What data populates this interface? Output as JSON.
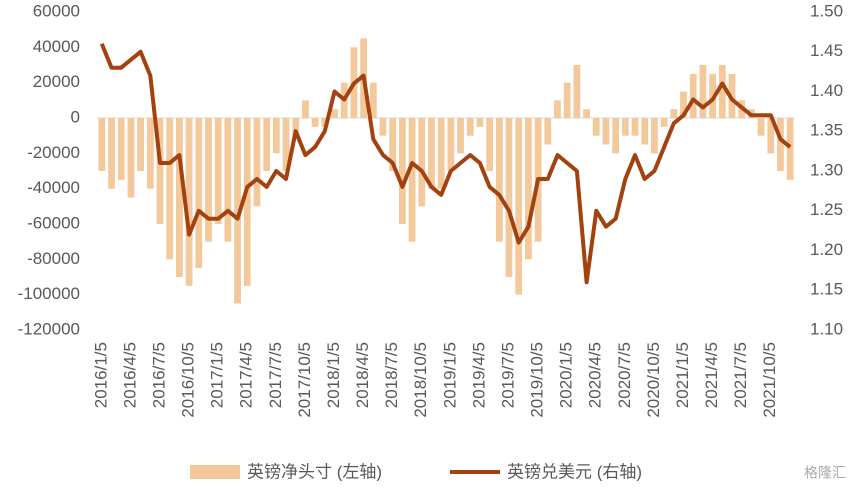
{
  "chart_data": {
    "type": "bar-line",
    "categories": [
      "2016/1/5",
      null,
      null,
      "2016/4/5",
      null,
      null,
      "2016/7/5",
      null,
      null,
      "2016/10/5",
      null,
      null,
      "2017/1/5",
      null,
      null,
      "2017/4/5",
      null,
      null,
      "2017/7/5",
      null,
      null,
      "2017/10/5",
      null,
      null,
      "2018/1/5",
      null,
      null,
      "2018/4/5",
      null,
      null,
      "2018/7/5",
      null,
      null,
      "2018/10/5",
      null,
      null,
      "2019/1/5",
      null,
      null,
      "2019/4/5",
      null,
      null,
      "2019/7/5",
      null,
      null,
      "2019/10/5",
      null,
      null,
      "2020/1/5",
      null,
      null,
      "2020/4/5",
      null,
      null,
      "2020/7/5",
      null,
      null,
      "2020/10/5",
      null,
      null,
      "2021/1/5",
      null,
      null,
      "2021/4/5",
      null,
      null,
      "2021/7/5",
      null,
      null,
      "2021/10/5",
      null,
      null
    ],
    "series": [
      {
        "name": "英镑净头寸 (左轴)",
        "color": "#f3c99b",
        "values": [
          -30000,
          -40000,
          -35000,
          -45000,
          -30000,
          -40000,
          -60000,
          -80000,
          -90000,
          -95000,
          -85000,
          -70000,
          -60000,
          -70000,
          -105000,
          -95000,
          -50000,
          -30000,
          -20000,
          -30000,
          -10000,
          10000,
          -5000,
          -5000,
          5000,
          20000,
          40000,
          45000,
          20000,
          -10000,
          -30000,
          -60000,
          -70000,
          -50000,
          -40000,
          -40000,
          -30000,
          -20000,
          -10000,
          -5000,
          -30000,
          -70000,
          -90000,
          -100000,
          -80000,
          -70000,
          -15000,
          10000,
          20000,
          30000,
          5000,
          -10000,
          -15000,
          -20000,
          -10000,
          -10000,
          -15000,
          -20000,
          -5000,
          5000,
          15000,
          25000,
          30000,
          25000,
          30000,
          25000,
          10000,
          5000,
          -10000,
          -20000,
          -30000,
          -35000
        ]
      },
      {
        "name": "英镑兑美元 (右轴)",
        "color": "#a3410f",
        "axis": "y2",
        "values": [
          1.46,
          1.43,
          1.43,
          1.44,
          1.45,
          1.42,
          1.31,
          1.31,
          1.32,
          1.22,
          1.25,
          1.24,
          1.24,
          1.25,
          1.24,
          1.28,
          1.29,
          1.28,
          1.3,
          1.29,
          1.35,
          1.32,
          1.33,
          1.35,
          1.4,
          1.39,
          1.41,
          1.42,
          1.34,
          1.32,
          1.31,
          1.28,
          1.31,
          1.3,
          1.28,
          1.27,
          1.3,
          1.31,
          1.32,
          1.31,
          1.28,
          1.27,
          1.25,
          1.21,
          1.23,
          1.29,
          1.29,
          1.32,
          1.31,
          1.3,
          1.16,
          1.25,
          1.23,
          1.24,
          1.29,
          1.32,
          1.29,
          1.3,
          1.33,
          1.36,
          1.37,
          1.39,
          1.38,
          1.39,
          1.41,
          1.39,
          1.38,
          1.37,
          1.37,
          1.37,
          1.34,
          1.33
        ]
      }
    ],
    "ylim": [
      -120000,
      60000
    ],
    "yticks": [
      -120000,
      -100000,
      -80000,
      -60000,
      -40000,
      -20000,
      0,
      20000,
      40000,
      60000
    ],
    "y2lim": [
      1.1,
      1.5
    ],
    "y2ticks": [
      {
        "value": 1.1,
        "label": "1.10"
      },
      {
        "value": 1.15,
        "label": "1.15"
      },
      {
        "value": 1.2,
        "label": "1.20"
      },
      {
        "value": 1.25,
        "label": "1.25"
      },
      {
        "value": 1.3,
        "label": "1.30"
      },
      {
        "value": 1.35,
        "label": "1.35"
      },
      {
        "value": 1.4,
        "label": "1.40"
      },
      {
        "value": 1.45,
        "label": "1.45"
      },
      {
        "value": 1.5,
        "label": "1.50"
      }
    ],
    "watermark": "格隆汇"
  }
}
